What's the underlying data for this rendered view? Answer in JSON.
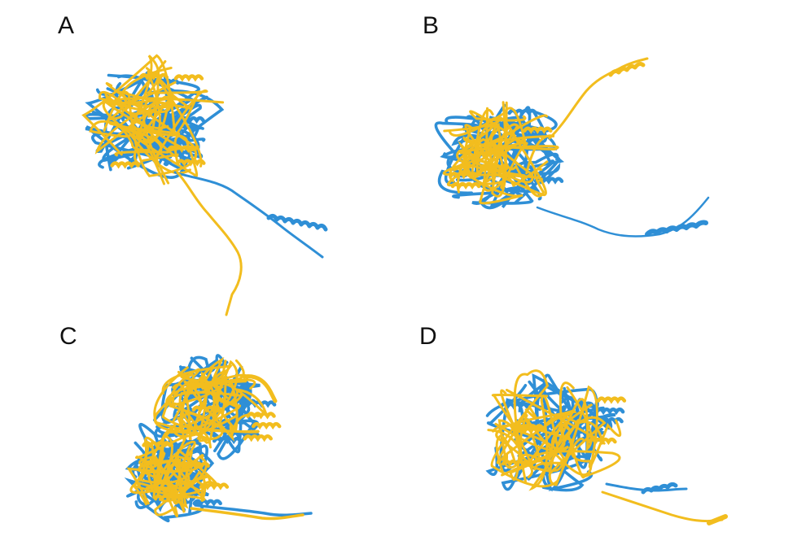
{
  "colors": {
    "model_a": "#2f8fd6",
    "model_b": "#f2bd1e",
    "edge": "#7a6a2a"
  },
  "panels": [
    {
      "label": "A"
    },
    {
      "label": "B"
    },
    {
      "label": "C"
    },
    {
      "label": "D"
    }
  ]
}
